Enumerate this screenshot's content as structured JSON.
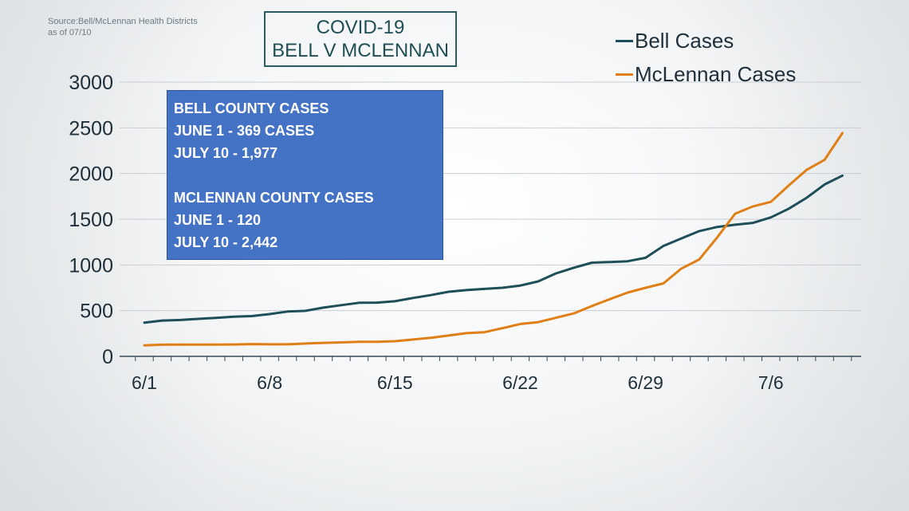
{
  "source": {
    "line1": "Source:Bell/McLennan Health Districts",
    "line2": "as of 07/10"
  },
  "title": {
    "line1": "COVID-19",
    "line2": "BELL V MCLENNAN"
  },
  "info_box": {
    "line1": "BELL COUNTY CASES",
    "line2": "JUNE 1 - 369 CASES",
    "line3": "JULY 10 - 1,977",
    "line4": "MCLENNAN COUNTY CASES",
    "line5": "JUNE 1 - 120",
    "line6": "JULY 10 - 2,442"
  },
  "colors": {
    "bell": "#1e4e57",
    "mclennan": "#e07f16",
    "grid": "#c9cdd1",
    "axis": "#3a4a55"
  },
  "chart_data": {
    "type": "line",
    "x": [
      "6/1",
      "6/2",
      "6/3",
      "6/4",
      "6/5",
      "6/6",
      "6/7",
      "6/8",
      "6/9",
      "6/10",
      "6/11",
      "6/12",
      "6/13",
      "6/14",
      "6/15",
      "6/16",
      "6/17",
      "6/18",
      "6/19",
      "6/20",
      "6/21",
      "6/22",
      "6/23",
      "6/24",
      "6/25",
      "6/26",
      "6/27",
      "6/28",
      "6/29",
      "6/30",
      "7/1",
      "7/2",
      "7/3",
      "7/4",
      "7/5",
      "7/6",
      "7/7",
      "7/8",
      "7/9",
      "7/10"
    ],
    "x_tick_labels": [
      "6/1",
      "6/8",
      "6/15",
      "6/22",
      "6/29",
      "7/6"
    ],
    "series": [
      {
        "name": "Bell Cases",
        "values": [
          369,
          392,
          398,
          410,
          421,
          433,
          440,
          462,
          490,
          498,
          533,
          560,
          586,
          588,
          603,
          638,
          670,
          706,
          725,
          738,
          750,
          774,
          820,
          908,
          970,
          1025,
          1032,
          1040,
          1078,
          1208,
          1290,
          1370,
          1415,
          1440,
          1460,
          1520,
          1615,
          1735,
          1880,
          1977
        ]
      },
      {
        "name": "McLennan Cases",
        "values": [
          120,
          127,
          128,
          128,
          128,
          130,
          134,
          132,
          132,
          140,
          147,
          153,
          160,
          160,
          166,
          184,
          202,
          228,
          254,
          264,
          308,
          354,
          374,
          422,
          470,
          550,
          625,
          698,
          750,
          798,
          960,
          1060,
          1300,
          1560,
          1640,
          1690,
          1870,
          2040,
          2150,
          2442
        ]
      }
    ],
    "y_ticks": [
      0,
      500,
      1000,
      1500,
      2000,
      2500,
      3000
    ],
    "ylim": [
      0,
      3000
    ],
    "grid": true,
    "legend_position": "top-right"
  }
}
